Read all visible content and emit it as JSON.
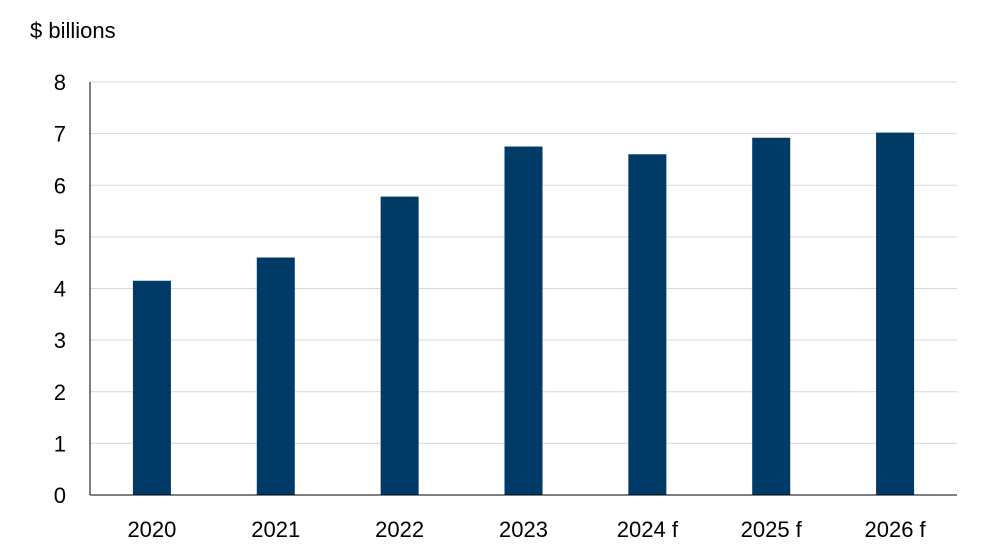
{
  "chart_data": {
    "type": "bar",
    "title": "",
    "unit_label": "$ billions",
    "xlabel": "",
    "ylabel": "",
    "categories": [
      "2020",
      "2021",
      "2022",
      "2023",
      "2024 f",
      "2025 f",
      "2026 f"
    ],
    "values": [
      4.15,
      4.6,
      5.78,
      6.75,
      6.6,
      6.92,
      7.02
    ],
    "ylim": [
      0,
      8
    ],
    "yticks": [
      "0",
      "1",
      "2",
      "3",
      "4",
      "5",
      "6",
      "7",
      "8"
    ],
    "grid": true,
    "legend": "none",
    "bar_color": "#003a66"
  }
}
